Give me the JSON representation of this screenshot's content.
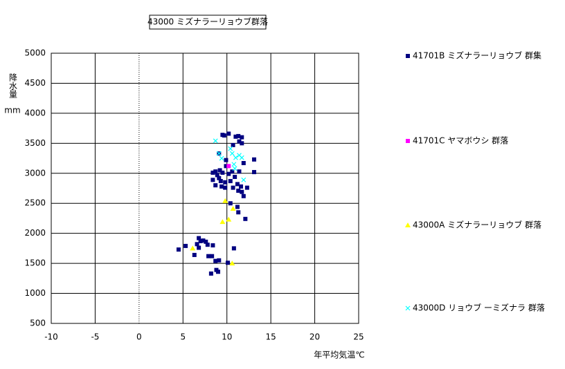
{
  "chart_data": {
    "type": "scatter",
    "title": "43000 ミズナラーリョウブ群落",
    "xlabel": "年平均気温℃",
    "ylabel": "降水量",
    "yunit": "mm",
    "xlim": [
      -10,
      25
    ],
    "ylim": [
      500,
      5000
    ],
    "xticks": [
      -10,
      -5,
      0,
      5,
      10,
      15,
      20,
      25
    ],
    "yticks": [
      500,
      1000,
      1500,
      2000,
      2500,
      3000,
      3500,
      4000,
      4500,
      5000
    ],
    "grid": true,
    "legend": "right",
    "series": [
      {
        "name": "41701B ミズナラーリョウブ 群集",
        "color": "#000080",
        "marker": "square",
        "x": [
          4.5,
          5.3,
          6.3,
          6.8,
          6.6,
          6.8,
          7.0,
          7.3,
          7.6,
          7.8,
          8.4,
          7.9,
          8.3,
          8.7,
          9.1,
          8.8,
          9.0,
          8.2,
          10.1,
          10.8,
          9.5,
          9.7,
          10.2,
          9.1,
          9.9,
          9.9,
          11.0,
          11.3,
          11.7,
          11.7,
          11.4,
          10.7,
          8.4,
          8.7,
          9.2,
          8.9,
          9.1,
          9.5,
          8.7,
          9.4,
          9.8,
          9.8,
          10.2,
          10.4,
          10.6,
          10.7,
          10.9,
          11.2,
          11.4,
          11.6,
          11.3,
          11.7,
          11.9,
          12.3,
          13.1,
          13.1,
          11.9,
          10.4,
          11.2,
          11.3,
          12.1,
          8.4,
          9.3
        ],
        "values": [
          1730,
          1790,
          1640,
          1920,
          1820,
          1760,
          1870,
          1880,
          1860,
          1810,
          1800,
          1620,
          1620,
          1540,
          1550,
          1390,
          1360,
          1330,
          1510,
          1750,
          3640,
          3630,
          3660,
          3330,
          3220,
          3120,
          3610,
          3620,
          3600,
          3500,
          3530,
          3470,
          3010,
          3030,
          3050,
          2970,
          2920,
          3010,
          2800,
          2780,
          2850,
          2760,
          2990,
          2870,
          3030,
          2760,
          2940,
          2820,
          3030,
          2780,
          2710,
          2690,
          2620,
          2760,
          3230,
          3020,
          3170,
          2500,
          2440,
          2350,
          2240,
          2890,
          2870
        ]
      },
      {
        "name": "41701C ヤマボウシ 群落",
        "color": "#ff00ff",
        "marker": "square",
        "x": [
          10.2
        ],
        "values": [
          3120
        ]
      },
      {
        "name": "43000A ミズナラーリョウブ 群落",
        "color": "#ffff00",
        "marker": "triangle",
        "x": [
          9.8,
          10.7,
          9.5,
          10.2,
          6.1,
          10.6
        ],
        "values": [
          2540,
          2410,
          2190,
          2230,
          1750,
          1500
        ]
      },
      {
        "name": "43000D リョウブ ーミズナラ 群落",
        "color": "#00ffff",
        "marker": "x",
        "x": [
          8.7,
          9.1,
          9.4,
          10.4,
          10.6,
          11.0,
          11.4,
          11.7,
          10.9,
          11.9,
          10.8
        ],
        "values": [
          3540,
          3330,
          3250,
          3410,
          3330,
          3260,
          3300,
          3260,
          3080,
          2890,
          3150
        ]
      }
    ]
  }
}
